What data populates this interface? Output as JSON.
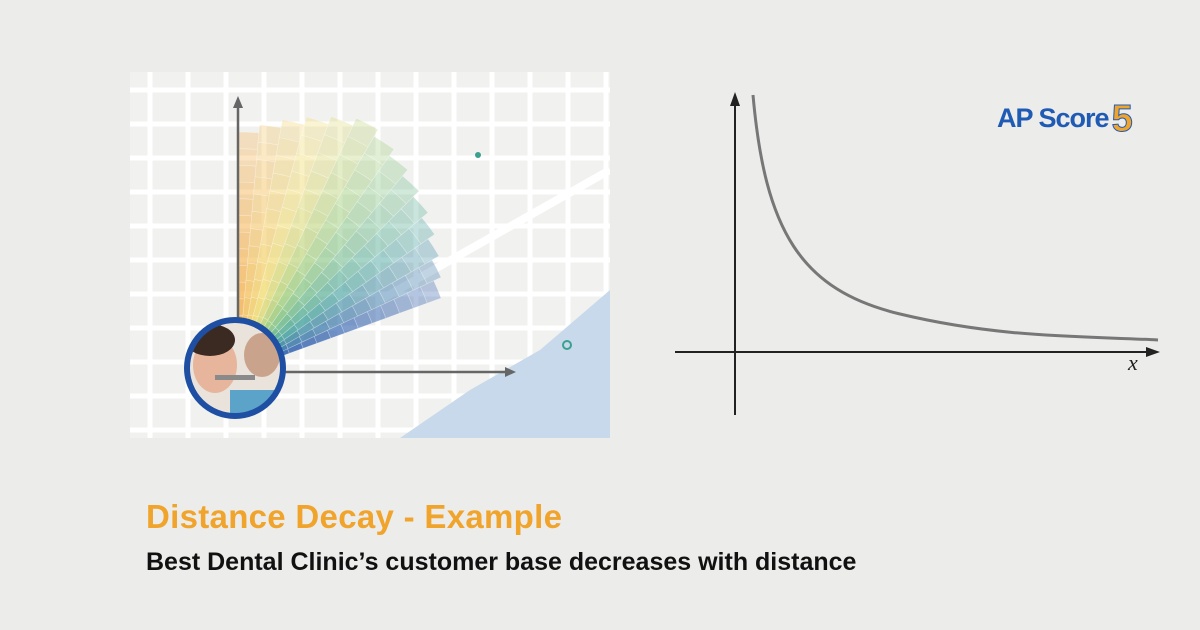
{
  "logo": {
    "text": "AP Score",
    "number": "5"
  },
  "graph": {
    "x_label": "x"
  },
  "caption": {
    "title": "Distance Decay - Example",
    "subtitle": "Best Dental Clinic’s customer base decreases with distance"
  }
}
